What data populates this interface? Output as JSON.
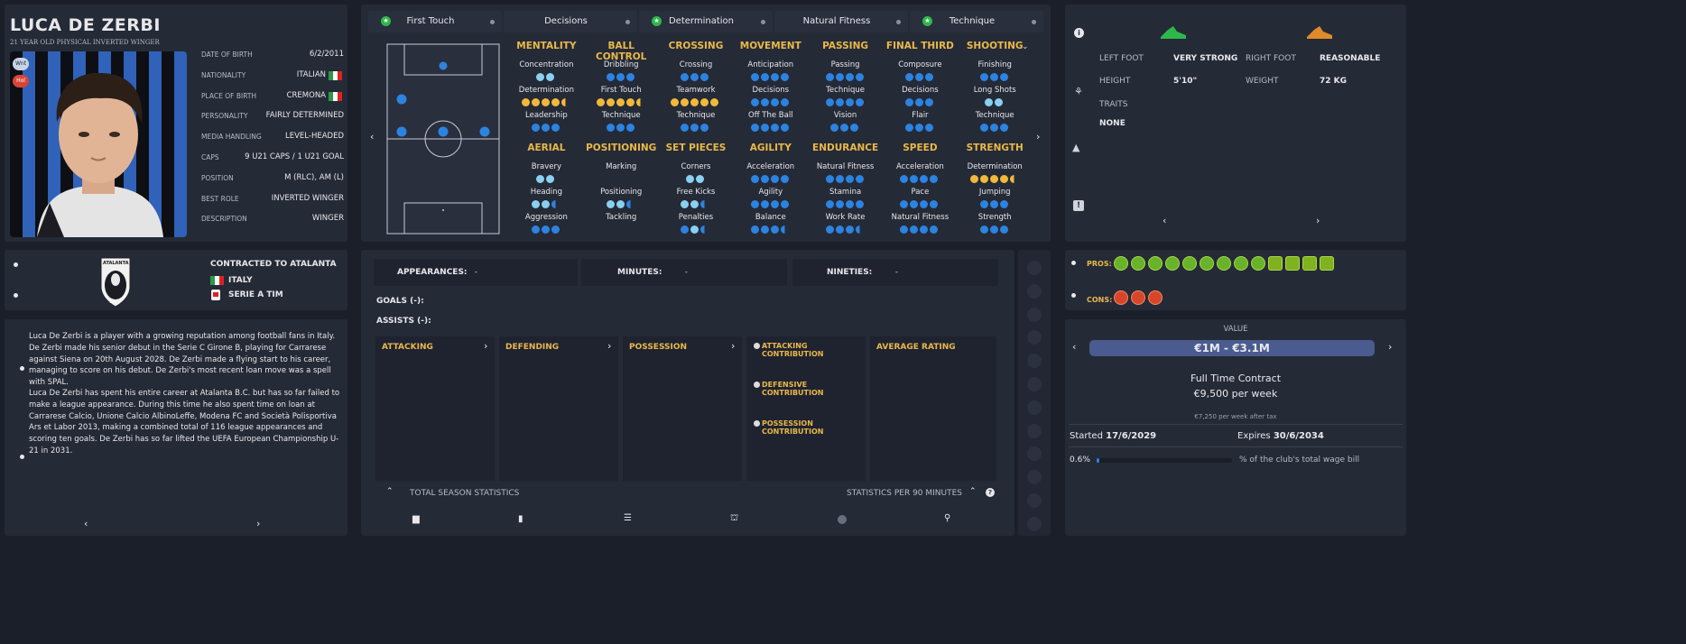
{
  "player": {
    "name": "LUCA DE ZERBI",
    "subtitle": "21 YEAR OLD PHYSICAL INVERTED WINGER",
    "badges": [
      "Wnt",
      "Hol"
    ],
    "details": [
      {
        "label": "DATE OF BIRTH",
        "value": "6/2/2011",
        "flag": false
      },
      {
        "label": "NATIONALITY",
        "value": "ITALIAN",
        "flag": true
      },
      {
        "label": "PLACE OF BIRTH",
        "value": "CREMONA",
        "flag": true
      },
      {
        "label": "PERSONALITY",
        "value": "FAIRLY DETERMINED",
        "flag": false
      },
      {
        "label": "MEDIA HANDLING",
        "value": "LEVEL-HEADED",
        "flag": false
      },
      {
        "label": "CAPS",
        "value": "9 U21 CAPS / 1 U21 GOAL",
        "flag": false
      },
      {
        "label": "POSITION",
        "value": "M (RLC), AM (L)",
        "flag": false
      },
      {
        "label": "BEST ROLE",
        "value": "INVERTED WINGER",
        "flag": false
      },
      {
        "label": "DESCRIPTION",
        "value": "WINGER",
        "flag": false
      }
    ]
  },
  "contract_panel": {
    "club_text": "CONTRACTED TO ATALANTA",
    "country": "ITALY",
    "league": "SERIE A TIM",
    "crest_text": "ATALANTA",
    "crest_year": "1907"
  },
  "bio": {
    "p1": "Luca De Zerbi is a player with a growing reputation among football fans in Italy. De Zerbi made his senior debut in the Serie C Girone B, playing for Carrarese against Siena on 20th August 2028. De Zerbi made a flying start to his career, managing to score on his debut. De Zerbi's most recent loan move was a spell with SPAL.",
    "p2": "Luca De Zerbi has spent his entire career at Atalanta B.C. but has so far failed to make a league appearance. During this time he also spent time on loan at Carrarese Calcio, Unione Calcio AlbinoLeffe, Modena FC and Società Polisportiva Ars et Labor 2013, making a combined total of 116 league appearances and scoring ten goals. De Zerbi has so far lifted the UEFA European Championship U-21 in 2031."
  },
  "tabs": [
    {
      "label": "First Touch",
      "star": true
    },
    {
      "label": "Decisions",
      "star": false
    },
    {
      "label": "Determination",
      "star": true
    },
    {
      "label": "Natural Fitness",
      "star": false
    },
    {
      "label": "Technique",
      "star": true
    }
  ],
  "attributes": {
    "row1": [
      {
        "group": "MENTALITY",
        "items": [
          {
            "name": "Concentration",
            "dots": [
              "light",
              "light"
            ]
          },
          {
            "name": "Determination",
            "dots": [
              "gold",
              "gold",
              "gold",
              "gold",
              "half-gold"
            ]
          },
          {
            "name": "Leadership",
            "dots": [
              "blue",
              "blue",
              "blue"
            ]
          }
        ]
      },
      {
        "group": "BALL CONTROL",
        "items": [
          {
            "name": "Dribbling",
            "dots": [
              "blue",
              "blue",
              "blue"
            ]
          },
          {
            "name": "First Touch",
            "dots": [
              "gold",
              "gold",
              "gold",
              "gold",
              "half-gold"
            ]
          },
          {
            "name": "Technique",
            "dots": [
              "blue",
              "blue",
              "blue"
            ]
          }
        ]
      },
      {
        "group": "CROSSING",
        "items": [
          {
            "name": "Crossing",
            "dots": [
              "blue",
              "blue",
              "blue"
            ]
          },
          {
            "name": "Teamwork",
            "dots": [
              "gold",
              "gold",
              "gold",
              "gold",
              "gold"
            ]
          },
          {
            "name": "Technique",
            "dots": [
              "blue",
              "blue",
              "blue"
            ]
          }
        ]
      },
      {
        "group": "MOVEMENT",
        "items": [
          {
            "name": "Anticipation",
            "dots": [
              "blue",
              "blue",
              "blue",
              "blue"
            ]
          },
          {
            "name": "Decisions",
            "dots": [
              "blue",
              "blue",
              "blue",
              "blue"
            ]
          },
          {
            "name": "Off The Ball",
            "dots": [
              "blue",
              "blue",
              "blue",
              "blue"
            ]
          }
        ]
      },
      {
        "group": "PASSING",
        "items": [
          {
            "name": "Passing",
            "dots": [
              "blue",
              "blue",
              "blue",
              "blue"
            ]
          },
          {
            "name": "Technique",
            "dots": [
              "blue",
              "blue",
              "blue",
              "blue"
            ]
          },
          {
            "name": "Vision",
            "dots": [
              "blue",
              "blue",
              "blue"
            ]
          }
        ]
      },
      {
        "group": "FINAL THIRD",
        "items": [
          {
            "name": "Composure",
            "dots": [
              "blue",
              "blue",
              "blue"
            ]
          },
          {
            "name": "Decisions",
            "dots": [
              "blue",
              "blue",
              "blue"
            ]
          },
          {
            "name": "Flair",
            "dots": [
              "blue",
              "blue",
              "blue"
            ]
          }
        ]
      },
      {
        "group": "SHOOTING",
        "items": [
          {
            "name": "Finishing",
            "dots": [
              "blue",
              "blue",
              "blue"
            ]
          },
          {
            "name": "Long Shots",
            "dots": [
              "light",
              "light"
            ]
          },
          {
            "name": "Technique",
            "dots": [
              "blue",
              "blue",
              "blue"
            ]
          }
        ]
      }
    ],
    "row2": [
      {
        "group": "AERIAL",
        "items": [
          {
            "name": "Bravery",
            "dots": [
              "light",
              "light"
            ]
          },
          {
            "name": "Heading",
            "dots": [
              "light",
              "light",
              "half"
            ]
          },
          {
            "name": "Aggression",
            "dots": [
              "blue",
              "blue",
              "blue"
            ]
          }
        ]
      },
      {
        "group": "POSITIONING",
        "items": [
          {
            "name": "Marking",
            "dots": []
          },
          {
            "name": "Positioning",
            "dots": [
              "light",
              "light",
              "half"
            ]
          },
          {
            "name": "Tackling",
            "dots": []
          }
        ]
      },
      {
        "group": "SET PIECES",
        "items": [
          {
            "name": "Corners",
            "dots": [
              "light",
              "light"
            ]
          },
          {
            "name": "Free Kicks",
            "dots": [
              "light",
              "light",
              "half"
            ]
          },
          {
            "name": "Penalties",
            "dots": [
              "blue",
              "light",
              "half"
            ]
          }
        ]
      },
      {
        "group": "AGILITY",
        "items": [
          {
            "name": "Acceleration",
            "dots": [
              "blue",
              "blue",
              "blue",
              "blue"
            ]
          },
          {
            "name": "Agility",
            "dots": [
              "blue",
              "blue",
              "blue",
              "blue"
            ]
          },
          {
            "name": "Balance",
            "dots": [
              "blue",
              "blue",
              "blue",
              "half"
            ]
          }
        ]
      },
      {
        "group": "ENDURANCE",
        "items": [
          {
            "name": "Natural Fitness",
            "dots": [
              "blue",
              "blue",
              "blue",
              "blue"
            ]
          },
          {
            "name": "Stamina",
            "dots": [
              "blue",
              "blue",
              "blue",
              "blue"
            ]
          },
          {
            "name": "Work Rate",
            "dots": [
              "blue",
              "blue",
              "blue",
              "half"
            ]
          }
        ]
      },
      {
        "group": "SPEED",
        "items": [
          {
            "name": "Acceleration",
            "dots": [
              "blue",
              "blue",
              "blue",
              "blue"
            ]
          },
          {
            "name": "Pace",
            "dots": [
              "blue",
              "blue",
              "blue",
              "blue"
            ]
          },
          {
            "name": "Natural Fitness",
            "dots": [
              "blue",
              "blue",
              "blue",
              "blue"
            ]
          }
        ]
      },
      {
        "group": "STRENGTH",
        "items": [
          {
            "name": "Determination",
            "dots": [
              "gold",
              "gold",
              "gold",
              "gold",
              "half-gold"
            ]
          },
          {
            "name": "Jumping",
            "dots": [
              "blue",
              "blue",
              "blue"
            ]
          },
          {
            "name": "Strength",
            "dots": [
              "blue",
              "blue",
              "blue"
            ]
          }
        ]
      }
    ]
  },
  "physical": {
    "left_foot_label": "LEFT FOOT",
    "left_foot": "VERY STRONG",
    "right_foot_label": "RIGHT FOOT",
    "right_foot": "REASONABLE",
    "height_label": "HEIGHT",
    "height": "5'10\"",
    "weight_label": "WEIGHT",
    "weight": "72 KG",
    "traits_label": "TRAITS",
    "traits": "NONE"
  },
  "stats": {
    "appearances_label": "APPEARANCES:",
    "appearances": "-",
    "minutes_label": "MINUTES:",
    "minutes": "-",
    "nineties_label": "NINETIES:",
    "nineties": "-",
    "goals": "GOALS (-):",
    "assists": "ASSISTS (-):",
    "columns": [
      "ATTACKING",
      "DEFENDING",
      "POSSESSION"
    ],
    "contributions": [
      "ATTACKING CONTRIBUTION",
      "DEFENSIVE CONTRIBUTION",
      "POSSESSION CONTRIBUTION"
    ],
    "average_rating": "AVERAGE RATING",
    "total_season": "TOTAL SEASON STATISTICS",
    "per90": "STATISTICS PER 90 MINUTES"
  },
  "pros_cons": {
    "pros_label": "PROS:",
    "cons_label": "CONS:",
    "pros_count": 13,
    "cons_count": 3
  },
  "value": {
    "label": "VALUE",
    "range": "€1M - €3.1M",
    "contract_type": "Full Time Contract",
    "wage": "€9,500 per week",
    "after_tax": "€7,250 per week after tax",
    "started_label": "Started",
    "started": "17/6/2029",
    "expires_label": "Expires",
    "expires": "30/6/2034",
    "wage_pct": "0.6%",
    "wage_pct_value": 0.6,
    "wage_bill_text": "% of the club's total wage bill"
  },
  "colors": {
    "gold": "#e9b84a",
    "blue_dot": "#2c83e0",
    "light_dot": "#8ad0f0",
    "gold_dot": "#f1b93a",
    "panel": "#252a37",
    "background": "#1b1f2a"
  }
}
